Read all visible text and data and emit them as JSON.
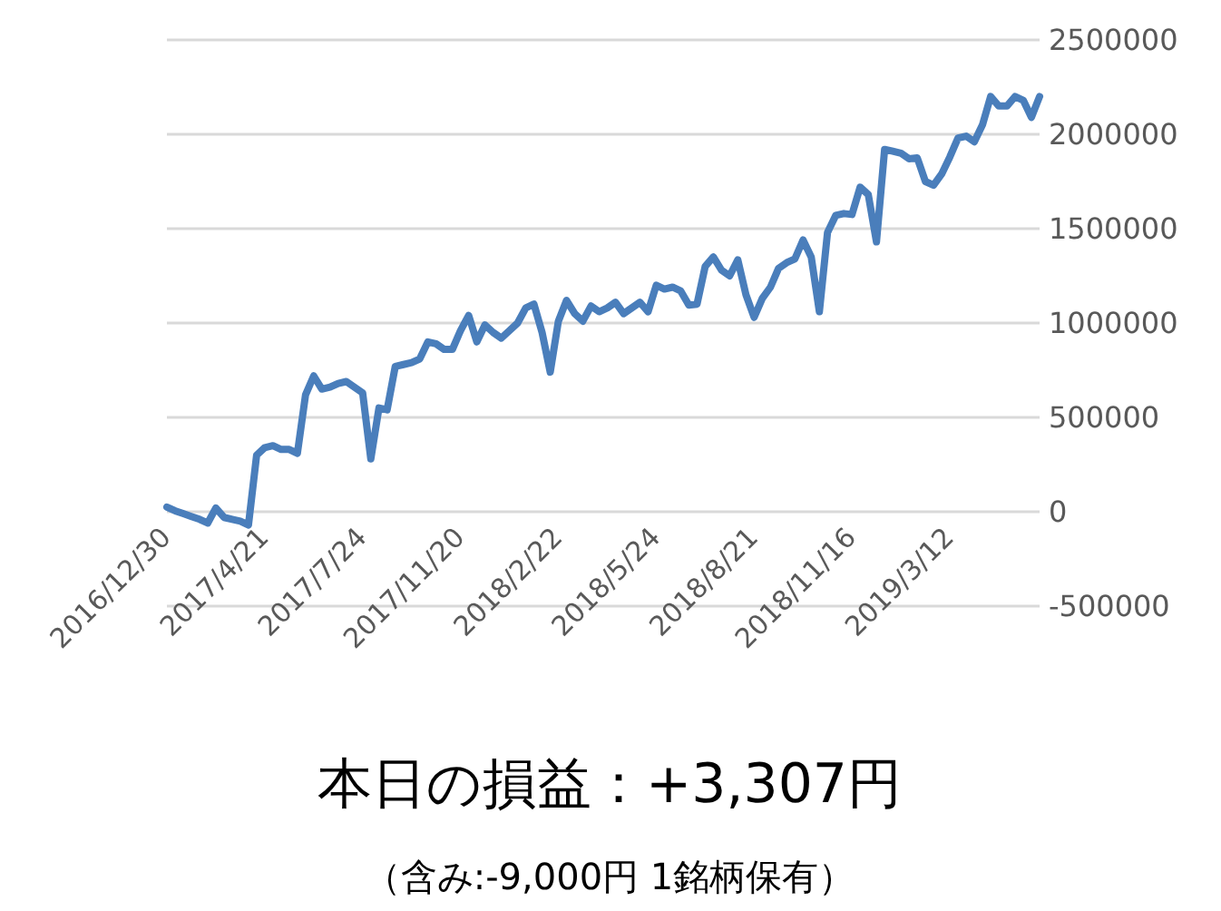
{
  "chart_data": {
    "type": "line",
    "categories": [
      "2016/12/30",
      null,
      null,
      null,
      null,
      null,
      null,
      null,
      null,
      null,
      null,
      null,
      "2017/4/21",
      null,
      null,
      null,
      null,
      null,
      null,
      null,
      null,
      null,
      null,
      null,
      "2017/7/24",
      null,
      null,
      null,
      null,
      null,
      null,
      null,
      null,
      null,
      null,
      null,
      "2017/11/20",
      null,
      null,
      null,
      null,
      null,
      null,
      null,
      null,
      null,
      null,
      null,
      "2018/2/22",
      null,
      null,
      null,
      null,
      null,
      null,
      null,
      null,
      null,
      null,
      null,
      "2018/5/24",
      null,
      null,
      null,
      null,
      null,
      null,
      null,
      null,
      null,
      null,
      null,
      "2018/8/21",
      null,
      null,
      null,
      null,
      null,
      null,
      null,
      null,
      null,
      null,
      null,
      "2018/11/16",
      null,
      null,
      null,
      null,
      null,
      null,
      null,
      null,
      null,
      null,
      null,
      "2019/3/12",
      null,
      null,
      null,
      null,
      null,
      null,
      null,
      null,
      null,
      null,
      null
    ],
    "series": [
      {
        "color": "#4a7ebb",
        "values": [
          25000,
          5000,
          -10000,
          -25000,
          -40000,
          -60000,
          20000,
          -30000,
          -40000,
          -50000,
          -70000,
          300000,
          340000,
          350000,
          330000,
          330000,
          310000,
          620000,
          720000,
          650000,
          660000,
          680000,
          690000,
          660000,
          630000,
          280000,
          550000,
          540000,
          770000,
          780000,
          790000,
          810000,
          900000,
          890000,
          860000,
          860000,
          960000,
          1040000,
          900000,
          990000,
          950000,
          920000,
          960000,
          1000000,
          1080000,
          1100000,
          950000,
          740000,
          1010000,
          1120000,
          1050000,
          1010000,
          1090000,
          1060000,
          1080000,
          1110000,
          1050000,
          1080000,
          1110000,
          1060000,
          1200000,
          1180000,
          1190000,
          1170000,
          1095000,
          1100000,
          1300000,
          1350000,
          1280000,
          1250000,
          1335000,
          1150000,
          1030000,
          1130000,
          1190000,
          1290000,
          1320000,
          1340000,
          1440000,
          1350000,
          1060000,
          1480000,
          1570000,
          1580000,
          1575000,
          1720000,
          1680000,
          1430000,
          1920000,
          1910000,
          1900000,
          1870000,
          1875000,
          1750000,
          1730000,
          1790000,
          1880000,
          1980000,
          1990000,
          1960000,
          2050000,
          2200000,
          2150000,
          2150000,
          2200000,
          2180000,
          2090000,
          2200000
        ]
      }
    ],
    "ylim": [
      -500000,
      2500000
    ],
    "yticks": [
      -500000,
      0,
      500000,
      1000000,
      1500000,
      2000000,
      2500000
    ],
    "grid": "y",
    "marker": "none",
    "annotations": [
      "本日の損益：+3,307円",
      "（含み:-9,000円 1銘柄保有）"
    ]
  }
}
